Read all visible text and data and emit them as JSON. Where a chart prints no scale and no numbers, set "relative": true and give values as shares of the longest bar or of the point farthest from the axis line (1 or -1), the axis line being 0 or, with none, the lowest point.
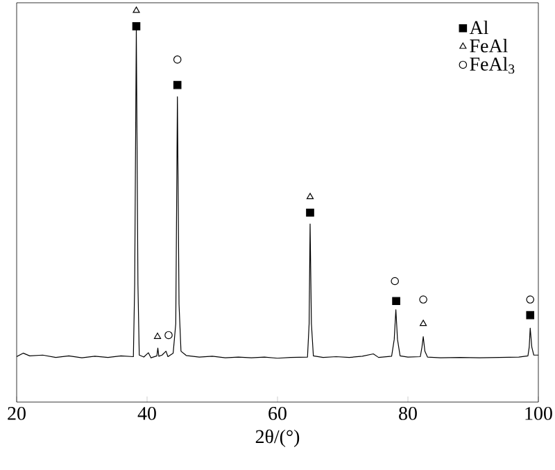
{
  "chart_data": {
    "type": "line",
    "relative": true,
    "xlabel": "2θ/(°)",
    "xlim": [
      20,
      100
    ],
    "xticks": [
      20,
      40,
      60,
      80,
      100
    ],
    "legend": "top right",
    "grid": false,
    "series": [
      {
        "color": "#000000",
        "marker": "none",
        "x": [
          20,
          21,
          22,
          24,
          26,
          28,
          30,
          32,
          34,
          36,
          37.9,
          38.1,
          38.35,
          38.6,
          38.8,
          39.5,
          40.2,
          40.6,
          41.5,
          41.65,
          41.8,
          42.3,
          42.9,
          43.2,
          44.0,
          44.4,
          44.65,
          44.9,
          45.2,
          46,
          48,
          50,
          52,
          54,
          56,
          58,
          60,
          62,
          64.6,
          64.85,
          65.0,
          65.2,
          65.5,
          67,
          69,
          71,
          73,
          74.7,
          75.5,
          77.5,
          77.9,
          78.15,
          78.4,
          78.8,
          80,
          81.9,
          82.15,
          82.35,
          82.6,
          83,
          85,
          88,
          91,
          94,
          97,
          98.4,
          98.6,
          98.75,
          99,
          99.3,
          100
        ],
        "values": [
          0.116,
          0.125,
          0.118,
          0.12,
          0.114,
          0.118,
          0.113,
          0.117,
          0.114,
          0.118,
          0.116,
          0.3,
          0.953,
          0.3,
          0.12,
          0.115,
          0.126,
          0.113,
          0.118,
          0.138,
          0.117,
          0.12,
          0.13,
          0.116,
          0.125,
          0.2,
          0.78,
          0.25,
          0.13,
          0.119,
          0.115,
          0.117,
          0.113,
          0.115,
          0.113,
          0.115,
          0.112,
          0.114,
          0.115,
          0.2,
          0.455,
          0.2,
          0.118,
          0.114,
          0.116,
          0.114,
          0.117,
          0.123,
          0.114,
          0.117,
          0.16,
          0.236,
          0.16,
          0.118,
          0.115,
          0.116,
          0.14,
          0.167,
          0.13,
          0.115,
          0.113,
          0.114,
          0.113,
          0.114,
          0.115,
          0.118,
          0.14,
          0.189,
          0.14,
          0.12,
          0.12
        ]
      },
      {
        "type": "scatter",
        "name": "Al",
        "color": "#000000",
        "marker": "square",
        "x": [
          38.35,
          44.65,
          65.0,
          78.2,
          98.75
        ],
        "values": [
          0.96,
          0.81,
          0.484,
          0.258,
          0.222
        ]
      },
      {
        "type": "scatter",
        "name": "FeAl",
        "color": "#000000",
        "marker": "triangle",
        "x": [
          38.35,
          41.6,
          65.0,
          82.35
        ],
        "values": [
          1.0,
          0.167,
          0.524,
          0.2
        ]
      },
      {
        "type": "scatter",
        "name": "FeAl$_{3}$",
        "color": "#000000",
        "marker": "circle",
        "x": [
          43.3,
          44.65,
          78.0,
          82.35,
          98.75
        ],
        "values": [
          0.171,
          0.875,
          0.309,
          0.262,
          0.262
        ]
      }
    ]
  }
}
